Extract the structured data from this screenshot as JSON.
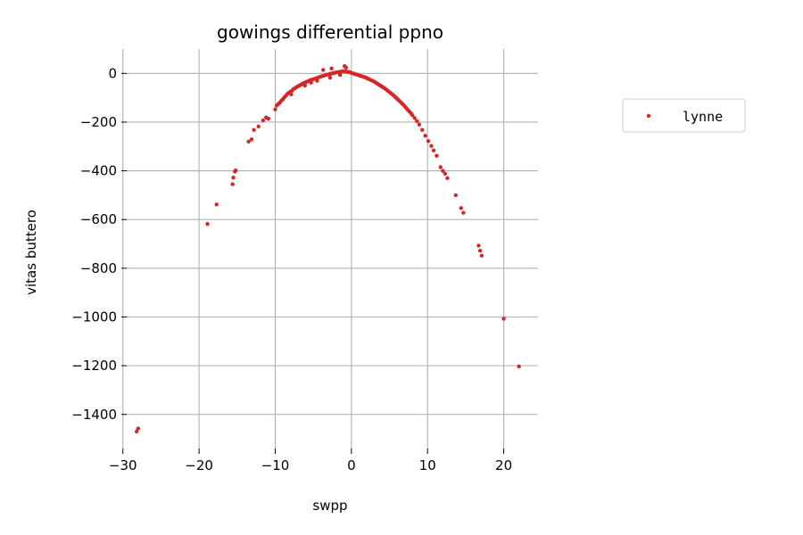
{
  "chart_data": {
    "type": "scatter",
    "title": "gowings differential ppno",
    "xlabel": "swpp",
    "ylabel": "vitas buttero",
    "xlim": [
      -29.5,
      24.5
    ],
    "ylim": [
      -1540,
      100
    ],
    "xticks": [
      -30,
      -20,
      -10,
      0,
      10,
      20
    ],
    "xtick_labels": [
      "−30",
      "−20",
      "−10",
      "0",
      "10",
      "20"
    ],
    "yticks": [
      0,
      -200,
      -400,
      -600,
      -800,
      -1000,
      -1200,
      -1400
    ],
    "ytick_labels": [
      "0",
      "−200",
      "−400",
      "−600",
      "−800",
      "−1000",
      "−1200",
      "−1400"
    ],
    "grid": true,
    "legend_position": "outside-right",
    "series": [
      {
        "name": "lynne",
        "color": "#d62728",
        "points": [
          [
            -28.2,
            -1470
          ],
          [
            -28.0,
            -1458
          ],
          [
            -18.9,
            -618
          ],
          [
            -17.7,
            -538
          ],
          [
            -15.6,
            -455
          ],
          [
            -15.5,
            -428
          ],
          [
            -15.3,
            -403
          ],
          [
            -15.2,
            -398
          ],
          [
            -13.5,
            -280
          ],
          [
            -13.1,
            -271
          ],
          [
            -12.8,
            -232
          ],
          [
            -12.2,
            -218
          ],
          [
            -11.6,
            -193
          ],
          [
            -11.2,
            -181
          ],
          [
            -10.9,
            -186
          ],
          [
            -10.0,
            -148
          ],
          [
            -9.8,
            -132
          ],
          [
            -9.6,
            -126
          ],
          [
            -9.4,
            -120
          ],
          [
            -9.2,
            -112
          ],
          [
            -9.0,
            -106
          ],
          [
            -8.8,
            -98
          ],
          [
            -8.6,
            -92
          ],
          [
            -8.4,
            -84
          ],
          [
            -8.2,
            -79
          ],
          [
            -8.0,
            -75
          ],
          [
            -7.8,
            -71
          ],
          [
            -7.6,
            -64
          ],
          [
            -7.4,
            -61
          ],
          [
            -7.2,
            -56
          ],
          [
            -7.0,
            -53
          ],
          [
            -6.8,
            -49
          ],
          [
            -6.6,
            -46
          ],
          [
            -6.4,
            -42
          ],
          [
            -6.2,
            -39
          ],
          [
            -6.0,
            -36
          ],
          [
            -5.8,
            -34
          ],
          [
            -5.6,
            -31
          ],
          [
            -5.4,
            -28
          ],
          [
            -5.2,
            -26
          ],
          [
            -5.0,
            -24
          ],
          [
            -4.8,
            -22
          ],
          [
            -4.6,
            -20
          ],
          [
            -4.4,
            -17
          ],
          [
            -4.2,
            -15
          ],
          [
            -4.0,
            -13
          ],
          [
            -3.8,
            -11
          ],
          [
            -3.6,
            -9
          ],
          [
            -3.4,
            -7
          ],
          [
            -3.2,
            -5
          ],
          [
            -3.0,
            -4
          ],
          [
            -2.8,
            -2
          ],
          [
            -2.6,
            -1
          ],
          [
            -2.4,
            1
          ],
          [
            -2.2,
            2
          ],
          [
            -2.0,
            4
          ],
          [
            -1.8,
            5
          ],
          [
            -1.6,
            6
          ],
          [
            -1.4,
            7
          ],
          [
            -1.2,
            8
          ],
          [
            -1.0,
            9
          ],
          [
            -0.8,
            8
          ],
          [
            -0.6,
            7
          ],
          [
            -0.4,
            6
          ],
          [
            -0.2,
            5
          ],
          [
            0.0,
            2
          ],
          [
            0.2,
            0
          ],
          [
            0.4,
            -2
          ],
          [
            0.6,
            -4
          ],
          [
            0.8,
            -6
          ],
          [
            -0.9,
            30
          ],
          [
            -0.7,
            24
          ],
          [
            -2.6,
            20
          ],
          [
            -3.7,
            14
          ],
          [
            -1.5,
            -6
          ],
          [
            -4.5,
            -30
          ],
          [
            -6.1,
            -50
          ],
          [
            -7.9,
            -86
          ],
          [
            -2.8,
            -18
          ],
          [
            -5.3,
            -38
          ],
          [
            1.0,
            -8
          ],
          [
            1.2,
            -10
          ],
          [
            1.4,
            -12
          ],
          [
            1.6,
            -14
          ],
          [
            1.8,
            -16
          ],
          [
            2.0,
            -19
          ],
          [
            2.2,
            -22
          ],
          [
            2.4,
            -25
          ],
          [
            2.6,
            -28
          ],
          [
            2.8,
            -31
          ],
          [
            3.0,
            -34
          ],
          [
            3.2,
            -38
          ],
          [
            3.4,
            -42
          ],
          [
            3.6,
            -46
          ],
          [
            3.8,
            -50
          ],
          [
            4.0,
            -54
          ],
          [
            4.2,
            -58
          ],
          [
            4.4,
            -62
          ],
          [
            4.6,
            -67
          ],
          [
            4.8,
            -72
          ],
          [
            5.0,
            -77
          ],
          [
            5.2,
            -82
          ],
          [
            5.4,
            -87
          ],
          [
            5.6,
            -92
          ],
          [
            5.8,
            -98
          ],
          [
            6.0,
            -104
          ],
          [
            6.2,
            -110
          ],
          [
            6.4,
            -116
          ],
          [
            6.6,
            -122
          ],
          [
            6.8,
            -128
          ],
          [
            7.0,
            -135
          ],
          [
            7.2,
            -142
          ],
          [
            7.4,
            -149
          ],
          [
            7.6,
            -156
          ],
          [
            7.8,
            -163
          ],
          [
            8.0,
            -171
          ],
          [
            8.3,
            -183
          ],
          [
            8.6,
            -196
          ],
          [
            8.9,
            -210
          ],
          [
            9.3,
            -232
          ],
          [
            9.7,
            -256
          ],
          [
            10.1,
            -278
          ],
          [
            10.5,
            -298
          ],
          [
            10.8,
            -316
          ],
          [
            11.2,
            -338
          ],
          [
            11.7,
            -385
          ],
          [
            12.0,
            -400
          ],
          [
            12.3,
            -412
          ],
          [
            12.6,
            -430
          ],
          [
            13.7,
            -500
          ],
          [
            14.4,
            -553
          ],
          [
            14.7,
            -572
          ],
          [
            16.7,
            -707
          ],
          [
            16.9,
            -728
          ],
          [
            17.1,
            -748
          ],
          [
            20.0,
            -1007
          ],
          [
            22.0,
            -1203
          ]
        ]
      }
    ]
  }
}
